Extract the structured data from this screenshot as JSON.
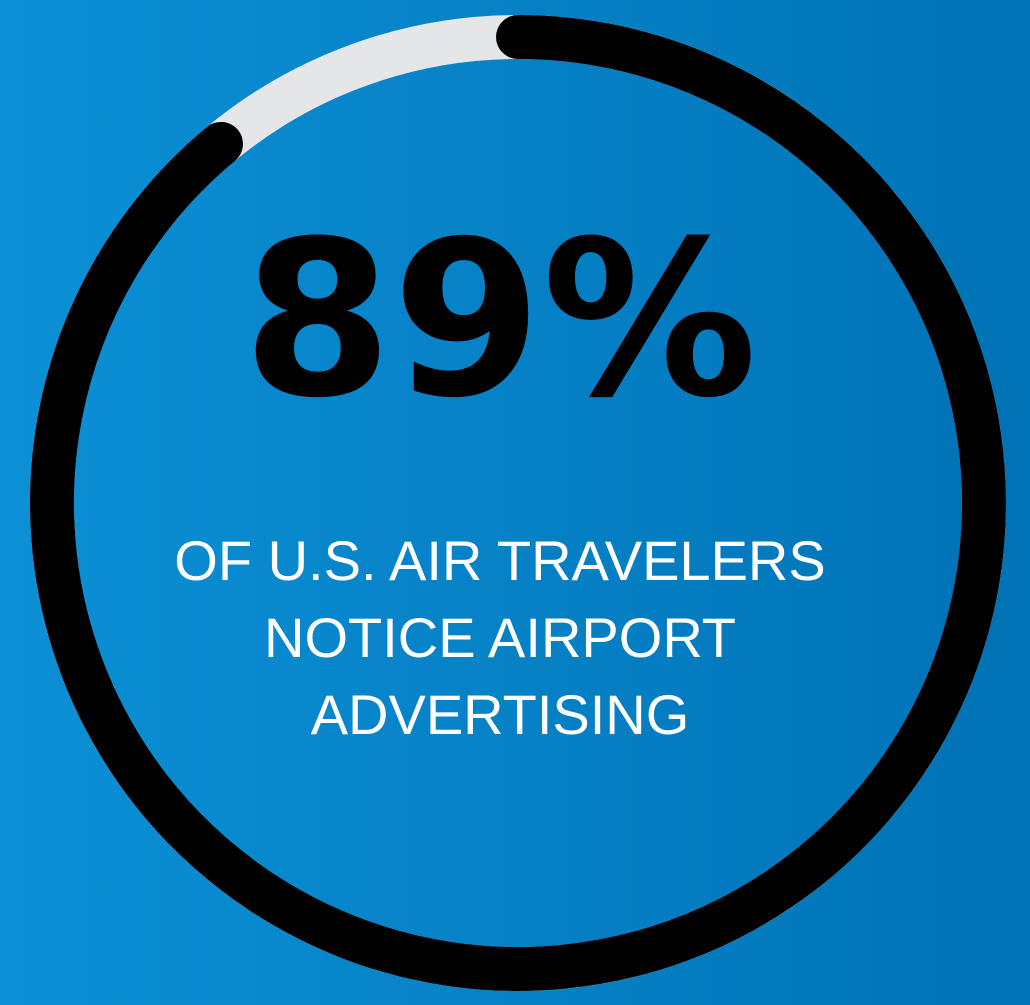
{
  "chart_data": {
    "type": "donut",
    "values": [
      89
    ],
    "value_labels": [
      "89%"
    ],
    "ylim": [
      0,
      100
    ],
    "color": "#000000",
    "track_color": "#e4e6e7",
    "annotation": [
      "OF U.S. AIR TRAVELERS",
      "NOTICE AIRPORT",
      "ADVERTISING"
    ]
  }
}
